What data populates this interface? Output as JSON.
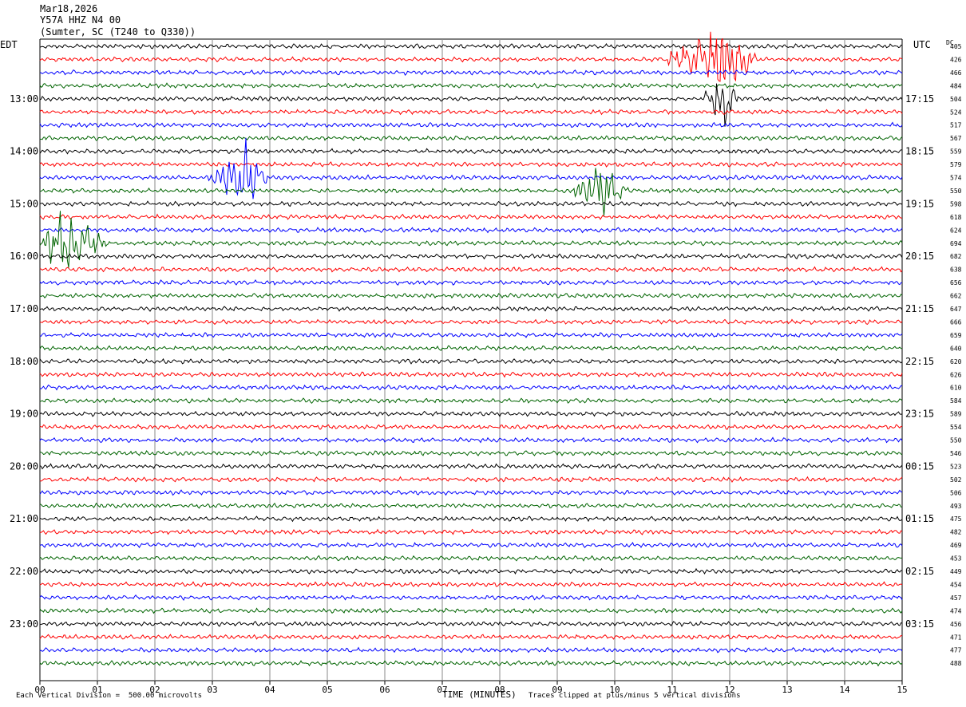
{
  "header": {
    "date": "Mar18,2026",
    "station": "Y57A HHZ N4 00",
    "location": "(Sumter, SC (T240 to Q330))"
  },
  "labels": {
    "left_tz": "EDT",
    "right_tz": "UTC",
    "dc_header": "DC"
  },
  "footer": {
    "scale_note": "Each Vertical Division =  500.00 microvolts",
    "xlabel": "TIME (MINUTES)",
    "clip_note": "Traces clipped at plus/minus 5 vertical divisions"
  },
  "colors": {
    "cycle": [
      "#000000",
      "#ff0000",
      "#0000ff",
      "#006400"
    ],
    "grid": "#888888"
  },
  "chart_data": {
    "type": "line",
    "x_ticks": [
      "00",
      "01",
      "02",
      "03",
      "04",
      "05",
      "06",
      "07",
      "08",
      "09",
      "10",
      "11",
      "12",
      "13",
      "14",
      "15"
    ],
    "xlim": [
      0,
      15
    ],
    "minutes_per_trace": 15,
    "left_time_labels": [
      "13:00",
      "14:00",
      "15:00",
      "16:00",
      "17:00",
      "18:00",
      "19:00",
      "20:00",
      "21:00",
      "22:00",
      "23:00"
    ],
    "right_time_labels": [
      "17:15",
      "18:15",
      "19:15",
      "20:15",
      "21:15",
      "22:15",
      "23:15",
      "00:15",
      "01:15",
      "02:15",
      "03:15"
    ],
    "dc_offsets": [
      "405",
      "426",
      "466",
      "484",
      "504",
      "524",
      "517",
      "567",
      "559",
      "579",
      "574",
      "550",
      "598",
      "618",
      "624",
      "694",
      "682",
      "638",
      "656",
      "662",
      "647",
      "666",
      "659",
      "640",
      "620",
      "626",
      "610",
      "584",
      "589",
      "554",
      "550",
      "546",
      "523",
      "502",
      "506",
      "493",
      "475",
      "482",
      "469",
      "453",
      "449",
      "454",
      "457",
      "474",
      "456",
      "471",
      "477",
      "488"
    ],
    "events": [
      {
        "trace": 1,
        "start_min": 10.8,
        "end_min": 12.5,
        "amp": 5,
        "peak_min": 11.9
      },
      {
        "trace": 4,
        "start_min": 11.5,
        "end_min": 12.2,
        "amp": 4,
        "peak_min": 11.9
      },
      {
        "trace": 10,
        "start_min": 2.9,
        "end_min": 4.0,
        "amp": 5,
        "peak_min": 3.65
      },
      {
        "trace": 11,
        "start_min": 9.2,
        "end_min": 10.3,
        "amp": 4,
        "peak_min": 9.7
      },
      {
        "trace": 15,
        "start_min": 0.0,
        "end_min": 1.2,
        "amp": 5,
        "peak_min": 0.3
      }
    ]
  }
}
